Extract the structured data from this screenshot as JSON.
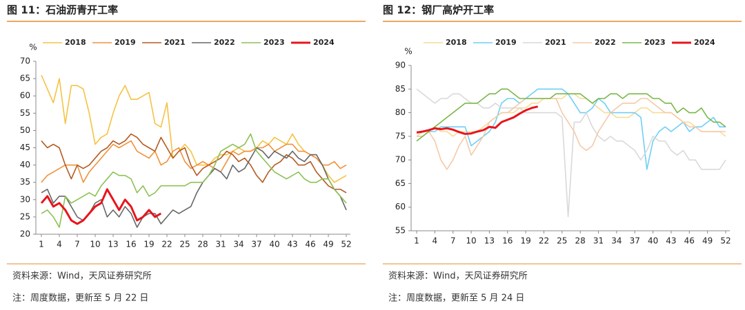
{
  "chart_data": [
    {
      "type": "line",
      "title": "图 11：石油沥青开工率",
      "y_unit": "%",
      "source": "资料来源：Wind，天风证券研究所",
      "note": "注：周度数据，更新至 5 月 22 日",
      "x": [
        1,
        2,
        3,
        4,
        5,
        6,
        7,
        8,
        9,
        10,
        11,
        12,
        13,
        14,
        15,
        16,
        17,
        18,
        19,
        20,
        21,
        22,
        23,
        24,
        25,
        26,
        27,
        28,
        29,
        30,
        31,
        32,
        33,
        34,
        35,
        36,
        37,
        38,
        39,
        40,
        41,
        42,
        43,
        44,
        45,
        46,
        47,
        48,
        49,
        50,
        51,
        52
      ],
      "xlim": [
        1,
        52
      ],
      "xticks": [
        1,
        4,
        7,
        10,
        13,
        16,
        19,
        22,
        25,
        28,
        31,
        34,
        37,
        40,
        43,
        46,
        49,
        52
      ],
      "ylim": [
        20,
        70
      ],
      "yticks": [
        20,
        25,
        30,
        35,
        40,
        45,
        50,
        55,
        60,
        65,
        70
      ],
      "series": [
        {
          "name": "2018",
          "color": "#f5c242",
          "width": 1.6,
          "values": [
            66,
            62,
            58,
            65,
            52,
            63,
            63,
            62,
            55,
            46,
            48,
            49,
            55,
            60,
            63,
            59,
            59,
            60,
            61,
            52,
            51,
            58,
            42,
            44,
            46,
            44,
            40,
            40,
            40,
            42,
            43,
            43,
            44,
            45,
            44,
            44,
            45,
            47,
            46,
            48,
            47,
            46,
            49,
            46,
            44,
            43,
            42,
            40,
            37,
            35,
            36,
            37
          ]
        },
        {
          "name": "2019",
          "color": "#f0913a",
          "width": 1.6,
          "values": [
            35,
            37,
            38,
            39,
            40,
            40,
            40,
            35,
            38,
            40,
            42,
            44,
            46,
            45,
            46,
            47,
            44,
            43,
            42,
            44,
            40,
            41,
            44,
            45,
            41,
            39,
            40,
            41,
            40,
            39,
            38,
            41,
            44,
            43,
            44,
            44,
            45,
            45,
            46,
            44,
            45,
            46,
            46,
            44,
            44,
            43,
            42,
            40,
            40,
            41,
            39,
            40
          ]
        },
        {
          "name": "2021",
          "color": "#b35a1f",
          "width": 1.6,
          "values": [
            47,
            45,
            46,
            45,
            40,
            36,
            40,
            39,
            40,
            42,
            44,
            45,
            47,
            46,
            47,
            49,
            48,
            46,
            45,
            44,
            48,
            45,
            42,
            44,
            45,
            40,
            37,
            39,
            40,
            41,
            42,
            44,
            43,
            41,
            42,
            40,
            37,
            35,
            38,
            40,
            41,
            43,
            42,
            40,
            40,
            41,
            38,
            36,
            34,
            33,
            33,
            32
          ]
        },
        {
          "name": "2022",
          "color": "#666666",
          "width": 1.6,
          "values": [
            32,
            33,
            29,
            31,
            31,
            28,
            25,
            24,
            26,
            29,
            30,
            25,
            27,
            25,
            28,
            26,
            22,
            25,
            26,
            26,
            23,
            25,
            27,
            26,
            27,
            28,
            32,
            35,
            37,
            39,
            38,
            36,
            40,
            38,
            39,
            42,
            45,
            44,
            42,
            44,
            43,
            42,
            44,
            42,
            41,
            43,
            43,
            40,
            36,
            33,
            31,
            27
          ]
        },
        {
          "name": "2023",
          "color": "#8cc152",
          "width": 1.6,
          "values": [
            26,
            27,
            25,
            22,
            31,
            29,
            30,
            31,
            32,
            31,
            34,
            36,
            38,
            37,
            37,
            36,
            32,
            34,
            31,
            32,
            34,
            34,
            34,
            34,
            34,
            35,
            35,
            35,
            37,
            40,
            44,
            45,
            46,
            45,
            46,
            49,
            44,
            42,
            40,
            38,
            37,
            36,
            37,
            38,
            36,
            35,
            35,
            36,
            36,
            33,
            31,
            29
          ]
        },
        {
          "name": "2024",
          "color": "#e8141b",
          "width": 3,
          "values": [
            29,
            31,
            28,
            29,
            27,
            24,
            23,
            24,
            26,
            28,
            29,
            33,
            30,
            27,
            30,
            28,
            24,
            25,
            27,
            25,
            26,
            null,
            null,
            null,
            null,
            null,
            null,
            null,
            null,
            null,
            null,
            null,
            null,
            null,
            null,
            null,
            null,
            null,
            null,
            null,
            null,
            null,
            null,
            null,
            null,
            null,
            null,
            null,
            null,
            null,
            null,
            null
          ]
        }
      ]
    },
    {
      "type": "line",
      "title": "图 12：钢厂高炉开工率",
      "y_unit": "%",
      "source": "资料来源：Wind，天风证券研究所",
      "note": "注：周度数据，更新至 5 月 24 日",
      "x": [
        1,
        2,
        3,
        4,
        5,
        6,
        7,
        8,
        9,
        10,
        11,
        12,
        13,
        14,
        15,
        16,
        17,
        18,
        19,
        20,
        21,
        22,
        23,
        24,
        25,
        26,
        27,
        28,
        29,
        30,
        31,
        32,
        33,
        34,
        35,
        36,
        37,
        38,
        39,
        40,
        41,
        42,
        43,
        44,
        45,
        46,
        47,
        48,
        49,
        50,
        51,
        52
      ],
      "xlim": [
        1,
        52
      ],
      "xticks": [
        1,
        4,
        7,
        10,
        13,
        16,
        19,
        22,
        25,
        28,
        31,
        34,
        37,
        40,
        43,
        46,
        49,
        52
      ],
      "ylim": [
        55,
        90
      ],
      "yticks": [
        55,
        60,
        65,
        70,
        75,
        80,
        85,
        90
      ],
      "series": [
        {
          "name": "2018",
          "color": "#f7dc96",
          "width": 1.6,
          "values": [
            75,
            76,
            76,
            77,
            76,
            76,
            75,
            76,
            76,
            76,
            76,
            77,
            78,
            79,
            80,
            80,
            80,
            81,
            81,
            82,
            82,
            83,
            83,
            83,
            83,
            84,
            84,
            83,
            83,
            82,
            81,
            80,
            80,
            79,
            79,
            79,
            80,
            81,
            81,
            80,
            80,
            80,
            80,
            79,
            78,
            78,
            77,
            76,
            76,
            76,
            76,
            75
          ]
        },
        {
          "name": "2019",
          "color": "#6dcff6",
          "width": 1.6,
          "values": [
            75,
            75,
            76,
            76,
            77,
            77,
            77,
            77,
            77,
            73,
            74,
            75,
            76,
            78,
            82,
            83,
            83,
            82,
            83,
            84,
            85,
            85,
            85,
            85,
            85,
            84,
            82,
            80,
            80,
            81,
            83,
            82,
            80,
            80,
            80,
            80,
            80,
            79,
            68,
            74,
            76,
            77,
            76,
            77,
            78,
            76,
            77,
            77,
            78,
            79,
            77,
            77
          ]
        },
        {
          "name": "2021",
          "color": "#d9d9d9",
          "width": 1.6,
          "values": [
            85,
            84,
            83,
            82,
            83,
            83,
            84,
            84,
            83,
            82,
            82,
            81,
            81,
            82,
            81,
            81,
            81,
            81,
            80,
            80,
            80,
            80,
            80,
            80,
            79,
            58,
            78,
            78,
            80,
            77,
            75,
            74,
            75,
            74,
            74,
            73,
            72,
            70,
            72,
            75,
            74,
            74,
            72,
            71,
            72,
            70,
            70,
            68,
            68,
            68,
            68,
            70
          ]
        },
        {
          "name": "2022",
          "color": "#f5c9a8",
          "width": 1.6,
          "values": [
            75,
            75,
            76,
            74,
            70,
            68,
            70,
            73,
            75,
            71,
            73,
            75,
            78,
            79,
            80,
            80,
            81,
            82,
            83,
            83,
            83,
            83,
            83,
            83,
            80,
            78,
            76,
            73,
            72,
            73,
            76,
            78,
            80,
            81,
            82,
            82,
            82,
            83,
            83,
            82,
            81,
            80,
            80,
            79,
            78,
            77,
            77,
            76,
            76,
            76,
            76,
            76
          ]
        },
        {
          "name": "2023",
          "color": "#7ab648",
          "width": 1.6,
          "values": [
            74,
            75,
            76,
            77,
            78,
            79,
            80,
            81,
            82,
            82,
            82,
            83,
            84,
            84,
            85,
            85,
            84,
            83,
            83,
            83,
            83,
            83,
            83,
            84,
            84,
            84,
            84,
            84,
            83,
            82,
            83,
            83,
            84,
            84,
            83,
            84,
            84,
            84,
            84,
            83,
            83,
            82,
            82,
            80,
            81,
            80,
            80,
            81,
            79,
            78,
            78,
            77
          ]
        },
        {
          "name": "2024",
          "color": "#e8141b",
          "width": 3,
          "values": [
            75.8,
            76,
            76.3,
            76.7,
            76.5,
            76.7,
            76.4,
            75.9,
            75.5,
            75.6,
            76,
            76.3,
            77,
            76.8,
            78,
            78.5,
            79,
            79.8,
            80.5,
            81,
            81.3,
            null,
            null,
            null,
            null,
            null,
            null,
            null,
            null,
            null,
            null,
            null,
            null,
            null,
            null,
            null,
            null,
            null,
            null,
            null,
            null,
            null,
            null,
            null,
            null,
            null,
            null,
            null,
            null,
            null,
            null,
            null
          ]
        }
      ]
    }
  ]
}
